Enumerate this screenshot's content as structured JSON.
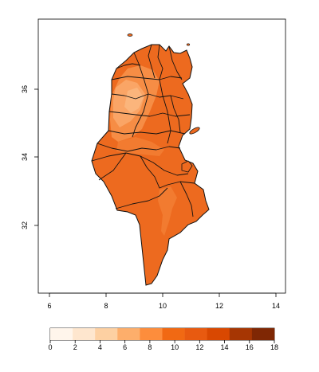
{
  "map": {
    "x_ticks": [
      "6",
      "8",
      "10",
      "12",
      "14"
    ],
    "y_ticks": [
      "32",
      "34",
      "36"
    ],
    "x_range": [
      5.6,
      14.4
    ],
    "y_range": [
      30.0,
      37.9
    ]
  },
  "legend": {
    "ticks": [
      "0",
      "2",
      "4",
      "6",
      "8",
      "10",
      "12",
      "14",
      "16",
      "18"
    ],
    "colors": [
      "#fff5eb",
      "#fee6ce",
      "#fdd0a2",
      "#fdae6b",
      "#fd8d3c",
      "#f16913",
      "#e85a10",
      "#d94801",
      "#a63603",
      "#7f2704"
    ]
  },
  "colors": {
    "fill_main": "#ed6a1f",
    "fill_light": "#f68d45",
    "fill_lighter": "#faa566",
    "fill_pale": "#fbb57c",
    "border": "#111111",
    "frame": "#000000"
  }
}
